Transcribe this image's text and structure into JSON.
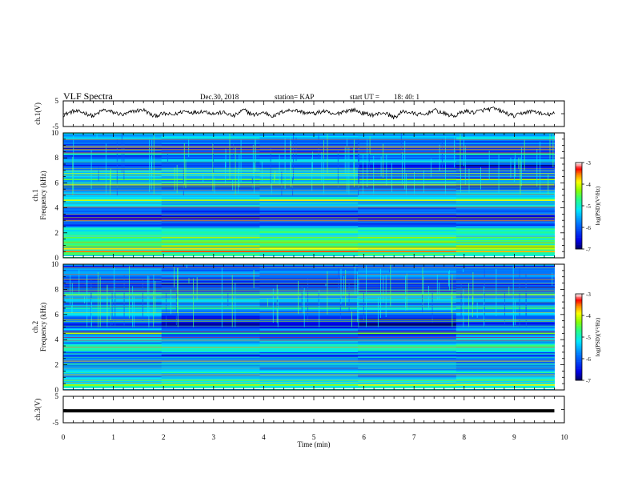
{
  "header": {
    "title": "VLF Spectra",
    "date": "Dec.30, 2018",
    "station": "station= KAP",
    "start_label": "start  UT =",
    "start_value": "18: 40: 1"
  },
  "chart_data": [
    {
      "type": "line",
      "panel": "waveform-ch1",
      "ylabel": "ch.1(V)",
      "ylim": [
        -5,
        5
      ],
      "yticks": [
        "5",
        "-5"
      ],
      "xlim": [
        0,
        10
      ],
      "x": [
        0,
        0.2,
        0.4,
        0.6,
        0.8,
        1.0,
        1.2,
        1.4,
        1.6,
        1.8,
        2.0,
        2.2,
        2.4,
        2.6,
        2.8,
        3.0,
        3.2,
        3.4,
        3.6,
        3.8,
        4.0,
        4.2,
        4.4,
        4.6,
        4.8,
        5.0,
        5.2,
        5.4,
        5.6,
        5.8,
        6.0,
        6.2,
        6.4,
        6.6,
        6.8,
        7.0,
        7.2,
        7.4,
        7.6,
        7.8,
        8.0,
        8.2,
        8.4,
        8.6,
        8.8,
        9.0,
        9.2,
        9.4,
        9.6,
        9.8
      ],
      "values": [
        -0.5,
        1.0,
        0.5,
        -1.0,
        1.5,
        0.5,
        -0.5,
        1.0,
        1.5,
        -1.0,
        0.0,
        -0.5,
        1.0,
        0.5,
        1.0,
        0.0,
        0.5,
        -1.0,
        1.5,
        -0.5,
        0.5,
        -1.0,
        1.0,
        1.5,
        0.5,
        0.0,
        1.0,
        -0.5,
        1.0,
        1.5,
        0.0,
        -0.5,
        0.5,
        -1.5,
        1.0,
        0.0,
        -0.5,
        1.5,
        0.0,
        -1.0,
        1.0,
        0.5,
        1.5,
        2.0,
        0.5,
        -1.0,
        0.5,
        1.0,
        -0.5,
        0.0
      ]
    },
    {
      "type": "heatmap",
      "panel": "spectrogram-ch1",
      "ylabel_channel": "ch.1",
      "ylabel": "Frequency  (kHz)",
      "xlim": [
        0,
        10
      ],
      "ylim": [
        0,
        10
      ],
      "yticks": [
        "0",
        "2",
        "4",
        "6",
        "8",
        "10"
      ],
      "colorbar": {
        "label": "log(PSD)(V²/Hz)",
        "range": [
          -7,
          -3
        ],
        "ticks": [
          "-3",
          "-4",
          "-5",
          "-6",
          "-7"
        ],
        "colors": [
          "#000080",
          "#0000ff",
          "#0080ff",
          "#00ffff",
          "#00ff80",
          "#80ff00",
          "#ffff00",
          "#ff8000",
          "#ff0000",
          "#ff8080",
          "#ffffff"
        ]
      },
      "frequency_profile_khz": [
        0.25,
        0.75,
        1.25,
        1.75,
        2.25,
        2.75,
        3.25,
        3.75,
        4.25,
        4.75,
        5.25,
        5.75,
        6.25,
        6.75,
        7.25,
        7.75,
        8.25,
        8.75,
        9.25,
        9.75
      ],
      "frequency_profile_logpsd": [
        -4.9,
        -4.8,
        -4.8,
        -4.9,
        -4.8,
        -6.0,
        -6.2,
        -5.7,
        -5.4,
        -5.3,
        -5.6,
        -6.1,
        -5.5,
        -5.0,
        -6.5,
        -5.4,
        -6.2,
        -6.2,
        -5.8,
        -5.5
      ]
    },
    {
      "type": "heatmap",
      "panel": "spectrogram-ch2",
      "ylabel_channel": "ch.2",
      "ylabel": "Frequency  (kHz)",
      "xlim": [
        0,
        10
      ],
      "ylim": [
        0,
        10
      ],
      "yticks": [
        "0",
        "2",
        "4",
        "6",
        "8",
        "10"
      ],
      "colorbar": {
        "label": "log(PSD)(V²/Hz)",
        "range": [
          -7,
          -3
        ],
        "ticks": [
          "-3",
          "-4",
          "-5",
          "-6",
          "-7"
        ],
        "colors": [
          "#000080",
          "#0000ff",
          "#0080ff",
          "#00ffff",
          "#00ff80",
          "#80ff00",
          "#ffff00",
          "#ff8000",
          "#ff0000",
          "#ff8080",
          "#ffffff"
        ]
      },
      "frequency_profile_khz": [
        0.25,
        0.75,
        1.25,
        1.75,
        2.25,
        2.75,
        3.25,
        3.75,
        4.25,
        4.75,
        5.25,
        5.75,
        6.25,
        6.75,
        7.25,
        7.75,
        8.25,
        8.75,
        9.25,
        9.75
      ],
      "frequency_profile_logpsd": [
        -5.0,
        -5.2,
        -5.2,
        -5.3,
        -5.6,
        -6.3,
        -4.9,
        -5.3,
        -5.8,
        -5.6,
        -6.0,
        -5.7,
        -5.5,
        -6.0,
        -5.3,
        -6.0,
        -6.2,
        -6.1,
        -5.7,
        -5.9
      ]
    },
    {
      "type": "line",
      "panel": "waveform-ch3",
      "ylabel": "ch.3(V)",
      "ylim": [
        -5,
        5
      ],
      "yticks": [
        "5",
        "-5"
      ],
      "xlim": [
        0,
        10
      ],
      "x": [
        0,
        9.8
      ],
      "values": [
        -0.5,
        -0.5
      ]
    }
  ],
  "xaxis": {
    "label": "Time  (min)",
    "ticks": [
      "0",
      "1",
      "2",
      "3",
      "4",
      "5",
      "6",
      "7",
      "8",
      "9",
      "10"
    ]
  }
}
